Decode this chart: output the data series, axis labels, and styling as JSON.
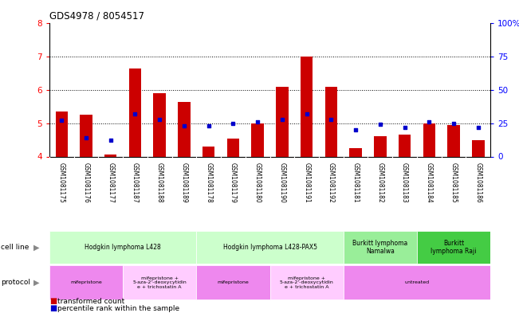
{
  "title": "GDS4978 / 8054517",
  "samples": [
    "GSM1081175",
    "GSM1081176",
    "GSM1081177",
    "GSM1081187",
    "GSM1081188",
    "GSM1081189",
    "GSM1081178",
    "GSM1081179",
    "GSM1081180",
    "GSM1081190",
    "GSM1081191",
    "GSM1081192",
    "GSM1081181",
    "GSM1081182",
    "GSM1081183",
    "GSM1081184",
    "GSM1081185",
    "GSM1081186"
  ],
  "red_values": [
    5.35,
    5.25,
    4.05,
    6.65,
    5.9,
    5.65,
    4.3,
    4.55,
    5.0,
    6.1,
    7.0,
    6.1,
    4.25,
    4.6,
    4.65,
    5.0,
    4.95,
    4.5
  ],
  "blue_values": [
    27,
    14,
    12,
    32,
    28,
    23,
    23,
    25,
    26,
    28,
    32,
    28,
    20,
    24,
    22,
    26,
    25,
    22
  ],
  "ylim": [
    4.0,
    8.0
  ],
  "yticks_left": [
    4,
    5,
    6,
    7,
    8
  ],
  "yticks_right": [
    0,
    25,
    50,
    75,
    100
  ],
  "yright_labels": [
    "0",
    "25",
    "50",
    "75",
    "100%"
  ],
  "dotted_lines": [
    5.0,
    6.0,
    7.0
  ],
  "cell_line_groups": [
    {
      "label": "Hodgkin lymphoma L428",
      "start": 0,
      "end": 5,
      "color": "#ccffcc"
    },
    {
      "label": "Hodgkin lymphoma L428-PAX5",
      "start": 6,
      "end": 11,
      "color": "#ccffcc"
    },
    {
      "label": "Burkitt lymphoma\nNamalwa",
      "start": 12,
      "end": 14,
      "color": "#99ee99"
    },
    {
      "label": "Burkitt\nlymphoma Raji",
      "start": 15,
      "end": 17,
      "color": "#44cc44"
    }
  ],
  "protocol_groups": [
    {
      "label": "mifepristone",
      "start": 0,
      "end": 2,
      "color": "#ee88ee"
    },
    {
      "label": "mifepristone +\n5-aza-2'-deoxycytidin\ne + trichostatin A",
      "start": 3,
      "end": 5,
      "color": "#ffccff"
    },
    {
      "label": "mifepristone",
      "start": 6,
      "end": 8,
      "color": "#ee88ee"
    },
    {
      "label": "mifepristone +\n5-aza-2'-deoxycytidin\ne + trichostatin A",
      "start": 9,
      "end": 11,
      "color": "#ffccff"
    },
    {
      "label": "untreated",
      "start": 12,
      "end": 17,
      "color": "#ee88ee"
    }
  ],
  "bar_width": 0.5,
  "red_color": "#cc0000",
  "blue_color": "#0000cc",
  "chart_bg": "#ffffff",
  "sample_bg": "#cccccc",
  "fig_bg": "#ffffff"
}
